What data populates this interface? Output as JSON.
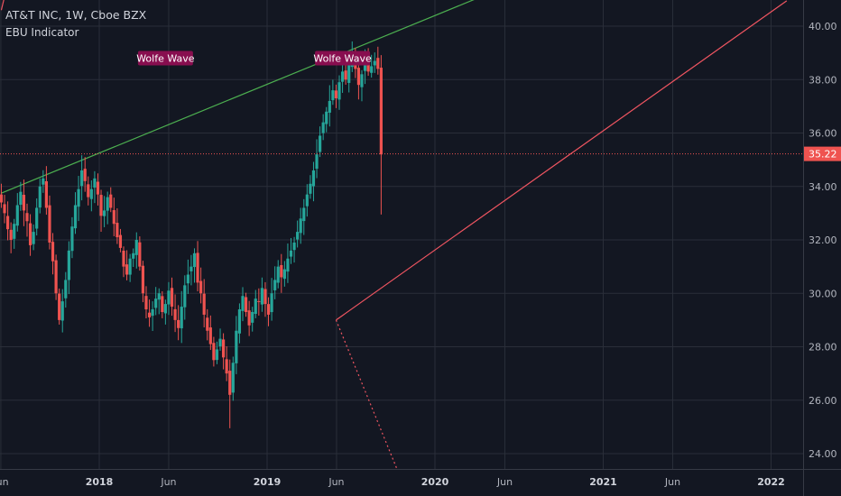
{
  "header": {
    "title": "AT&T INC, 1W, Cboe BZX",
    "indicator": "EBU Indicator"
  },
  "colors": {
    "background": "#131722",
    "grid": "#2a2e39",
    "up": "#26a69a",
    "down": "#ef5350",
    "upper_line": "#4caf50",
    "lower_line": "#f05561",
    "label_bg": "#880e4f",
    "price_tag": "#ef5350"
  },
  "chart_data": {
    "type": "candlestick",
    "ylim": [
      23.5,
      41.0
    ],
    "y_ticks": [
      "40.00",
      "38.00",
      "36.00",
      "34.00",
      "32.00",
      "30.00",
      "28.00",
      "26.00",
      "24.00"
    ],
    "y_tick_values": [
      40,
      38,
      36,
      34,
      32,
      30,
      28,
      26,
      24
    ],
    "x_ticks": [
      "Jun",
      "2018",
      "Jun",
      "2019",
      "Jun",
      "2020",
      "Jun",
      "2021",
      "Jun",
      "2022"
    ],
    "x_tick_years": [
      false,
      true,
      false,
      true,
      false,
      true,
      false,
      true,
      false,
      true
    ],
    "x_tick_dates": [
      "2017-06",
      "2018-01",
      "2018-06",
      "2019-01",
      "2019-06",
      "2020-01",
      "2020-06",
      "2021-01",
      "2021-06",
      "2022-01"
    ],
    "last_price": "35.22",
    "last_price_value": 35.22,
    "candles": {
      "start_date": "2017-06-02",
      "interval": "weekly",
      "close_path": [
        33.4,
        33.0,
        32.4,
        32.0,
        32.6,
        33.3,
        33.8,
        33.1,
        32.7,
        31.8,
        32.3,
        33.2,
        34.0,
        34.3,
        33.2,
        31.9,
        31.2,
        30.0,
        29.0,
        29.7,
        30.5,
        31.6,
        32.5,
        33.3,
        33.9,
        34.6,
        34.2,
        33.6,
        33.9,
        34.3,
        33.7,
        32.9,
        33.1,
        33.6,
        33.2,
        32.6,
        32.1,
        31.7,
        31.0,
        30.7,
        31.3,
        31.5,
        32.0,
        31.0,
        30.0,
        29.4,
        29.1,
        29.4,
        29.8,
        30.0,
        29.3,
        29.6,
        30.1,
        29.5,
        29.0,
        28.7,
        29.5,
        30.3,
        30.7,
        31.0,
        31.5,
        30.4,
        30.0,
        29.2,
        28.6,
        28.1,
        27.5,
        27.9,
        28.3,
        27.6,
        27.0,
        26.2,
        27.4,
        28.6,
        29.4,
        29.9,
        29.3,
        28.8,
        29.3,
        29.8,
        29.7,
        30.2,
        29.6,
        29.2,
        30.0,
        30.5,
        31.0,
        30.6,
        30.9,
        31.3,
        31.6,
        31.9,
        32.3,
        32.8,
        33.2,
        33.7,
        34.1,
        34.6,
        35.2,
        35.9,
        36.4,
        36.8,
        37.2,
        37.6,
        37.3,
        37.9,
        38.3,
        38.0,
        38.6,
        39.0,
        38.4,
        37.8,
        38.2,
        38.6,
        38.3,
        38.5,
        38.7,
        38.4,
        35.2
      ]
    },
    "lines": [
      {
        "name": "upper-trendline",
        "color": "upper_line",
        "from": {
          "date": "2017-06-02",
          "price": 33.75
        },
        "to": {
          "date": "2020-04-17",
          "price": 41.15
        }
      },
      {
        "name": "lower-trendline",
        "color": "lower_line",
        "from": {
          "date": "2019-05-31",
          "price": 29.0
        },
        "to": {
          "date": "2022-02-04",
          "price": 40.95
        }
      },
      {
        "name": "lower-dotted-projection",
        "color": "lower_line",
        "dashed": true,
        "from": {
          "date": "2019-05-31",
          "price": 29.0
        },
        "to": {
          "date": "2019-10-11",
          "price": 23.4
        }
      },
      {
        "name": "top-left-red-segment",
        "color": "lower_line",
        "from": {
          "date": "2017-06-02",
          "price": 40.6
        },
        "to": {
          "date": "2017-06-09",
          "price": 41.1
        }
      }
    ],
    "annotations": [
      {
        "text": "Wolfe Wave",
        "date": "2018-05-25",
        "price": 38.8
      },
      {
        "text": "Wolfe Wave",
        "date": "2019-06-14",
        "price": 38.8
      }
    ]
  }
}
